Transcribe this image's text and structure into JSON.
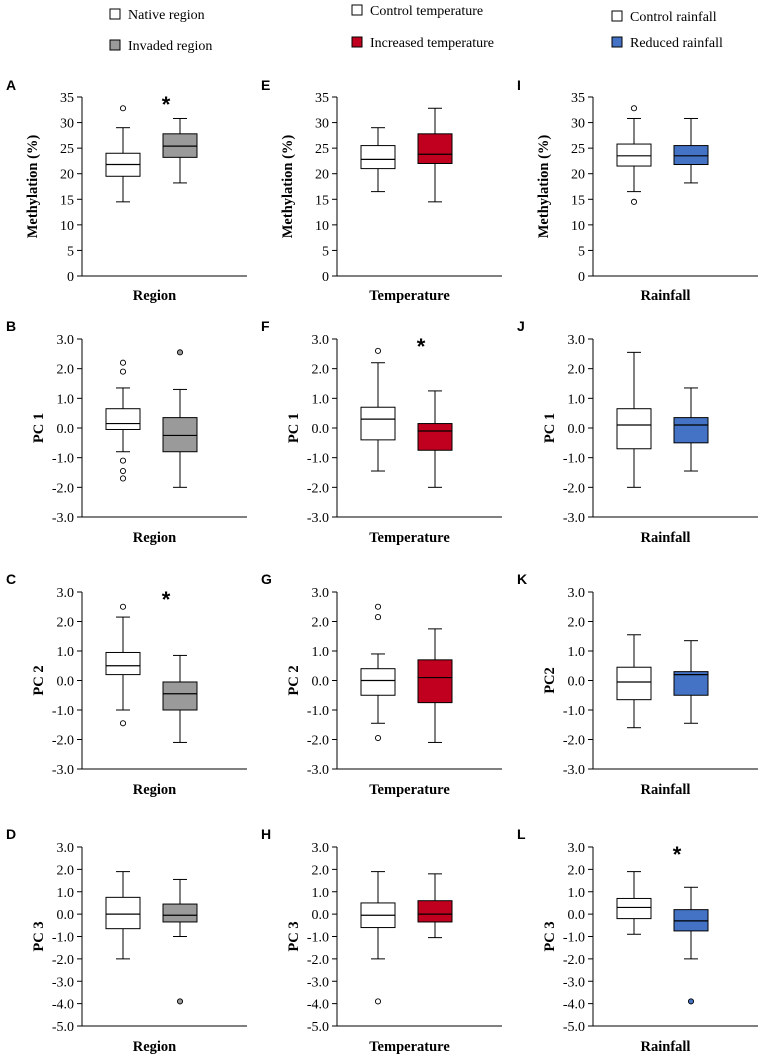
{
  "legends": [
    {
      "entries": [
        {
          "label": "Native region",
          "color": "#ffffff"
        },
        {
          "label": "Invaded region",
          "color": "#9a9a9a"
        }
      ]
    },
    {
      "entries": [
        {
          "label": "Control temperature",
          "color": "#ffffff"
        },
        {
          "label": "Increased temperature",
          "color": "#c0001e"
        }
      ]
    },
    {
      "entries": [
        {
          "label": "Control rainfall",
          "color": "#ffffff"
        },
        {
          "label": "Reduced rainfall",
          "color": "#4473c5"
        }
      ]
    }
  ],
  "chart_data": [
    {
      "id": "A",
      "type": "box",
      "xlabel": "Region",
      "ylabel": "Methylation (%)",
      "ylim": [
        0,
        35
      ],
      "step": 5,
      "ticks": [
        "0",
        "5",
        "10",
        "15",
        "20",
        "25",
        "30",
        "35"
      ],
      "significant": true,
      "boxes": [
        {
          "name": "Native region",
          "color": "#ffffff",
          "min": 14.5,
          "q1": 19.5,
          "median": 21.8,
          "q3": 24.0,
          "max": 29.0,
          "outliers": [
            32.8
          ]
        },
        {
          "name": "Invaded region",
          "color": "#9a9a9a",
          "min": 18.2,
          "q1": 23.2,
          "median": 25.4,
          "q3": 27.8,
          "max": 30.8,
          "outliers": []
        }
      ]
    },
    {
      "id": "B",
      "type": "box",
      "xlabel": "Region",
      "ylabel": "PC 1",
      "ylim": [
        -3,
        3
      ],
      "step": 1,
      "ticks": [
        "-3.0",
        "-2.0",
        "-1.0",
        "0.0",
        "1.0",
        "2.0",
        "3.0"
      ],
      "significant": false,
      "boxes": [
        {
          "name": "Native region",
          "color": "#ffffff",
          "min": -0.8,
          "q1": -0.05,
          "median": 0.15,
          "q3": 0.65,
          "max": 1.35,
          "outliers": [
            2.2,
            1.9,
            -1.1,
            -1.45,
            -1.7
          ]
        },
        {
          "name": "Invaded region",
          "color": "#9a9a9a",
          "min": -2.0,
          "q1": -0.8,
          "median": -0.25,
          "q3": 0.35,
          "max": 1.3,
          "outliers": [
            2.55
          ]
        }
      ]
    },
    {
      "id": "C",
      "type": "box",
      "xlabel": "Region",
      "ylabel": "PC 2",
      "ylim": [
        -3,
        3
      ],
      "step": 1,
      "ticks": [
        "-3.0",
        "-2.0",
        "-1.0",
        "0.0",
        "1.0",
        "2.0",
        "3.0"
      ],
      "significant": true,
      "boxes": [
        {
          "name": "Native region",
          "color": "#ffffff",
          "min": -1.0,
          "q1": 0.2,
          "median": 0.5,
          "q3": 0.95,
          "max": 2.15,
          "outliers": [
            2.5,
            -1.45
          ]
        },
        {
          "name": "Invaded region",
          "color": "#9a9a9a",
          "min": -2.1,
          "q1": -1.0,
          "median": -0.45,
          "q3": -0.05,
          "max": 0.85,
          "outliers": []
        }
      ]
    },
    {
      "id": "D",
      "type": "box",
      "xlabel": "Region",
      "ylabel": "PC 3",
      "ylim": [
        -5,
        3
      ],
      "step": 1,
      "ticks": [
        "-5.0",
        "-4.0",
        "-3.0",
        "-2.0",
        "-1.0",
        "0.0",
        "1.0",
        "2.0",
        "3.0"
      ],
      "significant": false,
      "boxes": [
        {
          "name": "Native region",
          "color": "#ffffff",
          "min": -2.0,
          "q1": -0.65,
          "median": 0.0,
          "q3": 0.75,
          "max": 1.9,
          "outliers": []
        },
        {
          "name": "Invaded region",
          "color": "#9a9a9a",
          "min": -1.0,
          "q1": -0.35,
          "median": -0.05,
          "q3": 0.45,
          "max": 1.55,
          "outliers": [
            -3.9
          ]
        }
      ]
    },
    {
      "id": "E",
      "type": "box",
      "xlabel": "Temperature",
      "ylabel": "Methylation (%)",
      "ylim": [
        0,
        35
      ],
      "step": 5,
      "ticks": [
        "0",
        "5",
        "10",
        "15",
        "20",
        "25",
        "30",
        "35"
      ],
      "significant": false,
      "boxes": [
        {
          "name": "Control temperature",
          "color": "#ffffff",
          "min": 16.5,
          "q1": 21.0,
          "median": 22.8,
          "q3": 25.5,
          "max": 29.0,
          "outliers": []
        },
        {
          "name": "Increased temperature",
          "color": "#c0001e",
          "min": 14.5,
          "q1": 22.0,
          "median": 23.8,
          "q3": 27.8,
          "max": 32.8,
          "outliers": []
        }
      ]
    },
    {
      "id": "F",
      "type": "box",
      "xlabel": "Temperature",
      "ylabel": "PC 1",
      "ylim": [
        -3,
        3
      ],
      "step": 1,
      "ticks": [
        "-3.0",
        "-2.0",
        "-1.0",
        "0.0",
        "1.0",
        "2.0",
        "3.0"
      ],
      "significant": true,
      "boxes": [
        {
          "name": "Control temperature",
          "color": "#ffffff",
          "min": -1.45,
          "q1": -0.4,
          "median": 0.3,
          "q3": 0.7,
          "max": 2.2,
          "outliers": [
            2.6
          ]
        },
        {
          "name": "Increased temperature",
          "color": "#c0001e",
          "min": -2.0,
          "q1": -0.75,
          "median": -0.1,
          "q3": 0.15,
          "max": 1.25,
          "outliers": []
        }
      ]
    },
    {
      "id": "G",
      "type": "box",
      "xlabel": "Temperature",
      "ylabel": "PC 2",
      "ylim": [
        -3,
        3
      ],
      "step": 1,
      "ticks": [
        "-3.0",
        "-2.0",
        "-1.0",
        "0.0",
        "1.0",
        "2.0",
        "3.0"
      ],
      "significant": false,
      "boxes": [
        {
          "name": "Control temperature",
          "color": "#ffffff",
          "min": -1.45,
          "q1": -0.5,
          "median": 0.0,
          "q3": 0.4,
          "max": 0.9,
          "outliers": [
            2.5,
            2.15,
            -1.95
          ]
        },
        {
          "name": "Increased temperature",
          "color": "#c0001e",
          "min": -2.1,
          "q1": -0.75,
          "median": 0.1,
          "q3": 0.7,
          "max": 1.75,
          "outliers": []
        }
      ]
    },
    {
      "id": "H",
      "type": "box",
      "xlabel": "Temperature",
      "ylabel": "PC 3",
      "ylim": [
        -5,
        3
      ],
      "step": 1,
      "ticks": [
        "-5.0",
        "-4.0",
        "-3.0",
        "-2.0",
        "-1.0",
        "0.0",
        "1.0",
        "2.0",
        "3.0"
      ],
      "significant": false,
      "boxes": [
        {
          "name": "Control temperature",
          "color": "#ffffff",
          "min": -2.0,
          "q1": -0.6,
          "median": -0.05,
          "q3": 0.5,
          "max": 1.9,
          "outliers": [
            -3.9
          ]
        },
        {
          "name": "Increased temperature",
          "color": "#c0001e",
          "min": -1.05,
          "q1": -0.35,
          "median": 0.0,
          "q3": 0.6,
          "max": 1.8,
          "outliers": []
        }
      ]
    },
    {
      "id": "I",
      "type": "box",
      "xlabel": "Rainfall",
      "ylabel": "Methylation (%)",
      "ylim": [
        0,
        35
      ],
      "step": 5,
      "ticks": [
        "0",
        "5",
        "10",
        "15",
        "20",
        "25",
        "30",
        "35"
      ],
      "significant": false,
      "boxes": [
        {
          "name": "Control rainfall",
          "color": "#ffffff",
          "min": 16.5,
          "q1": 21.5,
          "median": 23.5,
          "q3": 25.8,
          "max": 30.8,
          "outliers": [
            32.8,
            14.5
          ]
        },
        {
          "name": "Reduced rainfall",
          "color": "#4473c5",
          "min": 18.2,
          "q1": 21.8,
          "median": 23.5,
          "q3": 25.5,
          "max": 30.8,
          "outliers": []
        }
      ]
    },
    {
      "id": "J",
      "type": "box",
      "xlabel": "Rainfall",
      "ylabel": "PC 1",
      "ylim": [
        -3,
        3
      ],
      "step": 1,
      "ticks": [
        "-3.0",
        "-2.0",
        "-1.0",
        "0.0",
        "1.0",
        "2.0",
        "3.0"
      ],
      "significant": false,
      "boxes": [
        {
          "name": "Control rainfall",
          "color": "#ffffff",
          "min": -2.0,
          "q1": -0.7,
          "median": 0.1,
          "q3": 0.65,
          "max": 2.55,
          "outliers": []
        },
        {
          "name": "Reduced rainfall",
          "color": "#4473c5",
          "min": -1.45,
          "q1": -0.5,
          "median": 0.1,
          "q3": 0.35,
          "max": 1.35,
          "outliers": []
        }
      ]
    },
    {
      "id": "K",
      "type": "box",
      "xlabel": "Rainfall",
      "ylabel": "PC2",
      "ylim": [
        -3,
        3
      ],
      "step": 1,
      "ticks": [
        "-3.0",
        "-2.0",
        "-1.0",
        "0.0",
        "1.0",
        "2.0",
        "3.0"
      ],
      "significant": false,
      "boxes": [
        {
          "name": "Control rainfall",
          "color": "#ffffff",
          "min": -1.6,
          "q1": -0.65,
          "median": -0.05,
          "q3": 0.45,
          "max": 1.55,
          "outliers": []
        },
        {
          "name": "Reduced rainfall",
          "color": "#4473c5",
          "min": -1.45,
          "q1": -0.5,
          "median": 0.2,
          "q3": 0.3,
          "max": 1.35,
          "outliers": []
        }
      ]
    },
    {
      "id": "L",
      "type": "box",
      "xlabel": "Rainfall",
      "ylabel": "PC 3",
      "ylim": [
        -5,
        3
      ],
      "step": 1,
      "ticks": [
        "-5.0",
        "-4.0",
        "-3.0",
        "-2.0",
        "-1.0",
        "0.0",
        "1.0",
        "2.0",
        "3.0"
      ],
      "significant": true,
      "boxes": [
        {
          "name": "Control rainfall",
          "color": "#ffffff",
          "min": -0.9,
          "q1": -0.2,
          "median": 0.3,
          "q3": 0.7,
          "max": 1.9,
          "outliers": []
        },
        {
          "name": "Reduced rainfall",
          "color": "#4473c5",
          "min": -2.0,
          "q1": -0.75,
          "median": -0.3,
          "q3": 0.2,
          "max": 1.2,
          "outliers": [
            -3.9
          ]
        }
      ]
    }
  ]
}
